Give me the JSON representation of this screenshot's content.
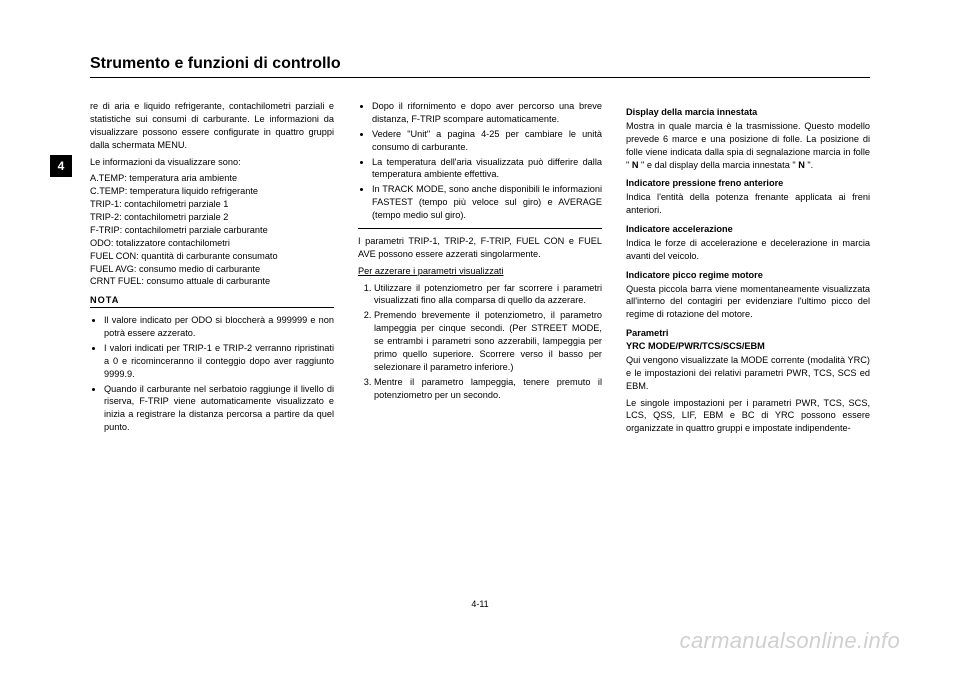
{
  "header": {
    "title": "Strumento e funzioni di controllo"
  },
  "sidetab": {
    "label": "4"
  },
  "page_number": "4-11",
  "watermark": "carmanualsonline.info",
  "col1": {
    "p1": "re di aria e liquido refrigerante, contachilometri parziali e statistiche sui consumi di carburante. Le informazioni da visualizzare possono essere configurate in quattro gruppi dalla schermata MENU.",
    "p2": "Le informazioni da visualizzare sono:",
    "l1": "A.TEMP: temperatura aria ambiente",
    "l2": "C.TEMP: temperatura liquido refrigerante",
    "l3": "TRIP-1: contachilometri parziale 1",
    "l4": "TRIP-2: contachilometri parziale 2",
    "l5": "F-TRIP: contachilometri parziale carburante",
    "l6": "ODO: totalizzatore contachilometri",
    "l7": "FUEL CON: quantità di carburante consumato",
    "l8": "FUEL AVG: consumo medio di carburante",
    "l9": "CRNT FUEL: consumo attuale di carburante",
    "nota_label": "NOTA",
    "b1": "Il valore indicato per ODO si bloccherà a 999999 e non potrà essere azzerato.",
    "b2": "I valori indicati per TRIP-1 e TRIP-2 verranno ripristinati a 0 e ricominceranno il conteggio dopo aver raggiunto 9999.9.",
    "b3": "Quando il carburante nel serbatoio raggiunge il livello di riserva, F-TRIP viene automaticamente visualizzato e inizia a registrare la distanza percorsa a partire da quel punto."
  },
  "col2": {
    "b1": "Dopo il rifornimento e dopo aver percorso una breve distanza, F-TRIP scompare automaticamente.",
    "b2": "Vedere \"Unit\" a pagina 4-25 per cambiare le unità consumo di carburante.",
    "b3": "La temperatura dell'aria visualizzata può differire dalla temperatura ambiente effettiva.",
    "b4": "In TRACK MODE, sono anche disponibili le informazioni FASTEST (tempo più veloce sul giro) e AVERAGE (tempo medio sul giro).",
    "p1": "I parametri TRIP-1, TRIP-2, F-TRIP, FUEL CON e FUEL AVE possono essere azzerati singolarmente.",
    "reset_title": "Per azzerare i parametri visualizzati",
    "s1": "Utilizzare il potenziometro per far scorrere i parametri visualizzati fino alla comparsa di quello da azzerare.",
    "s2": "Premendo brevemente il potenziometro, il parametro lampeggia per cinque secondi. (Per STREET MODE, se entrambi i parametri sono azzerabili, lampeggia per primo quello superiore. Scorrere verso il basso per selezionare il parametro inferiore.)",
    "s3": "Mentre il parametro lampeggia, tenere premuto il potenziometro per un secondo."
  },
  "col3": {
    "h1": "Display della marcia innestata",
    "p1a": "Mostra in quale marcia è la trasmissione. Questo modello prevede 6 marce e una posizione di folle. La posizione di folle viene indicata dalla spia di segnalazione marcia in folle \" ",
    "n1": "N",
    "p1b": " \" e dal display della marcia innestata \" ",
    "n2": "N",
    "p1c": " \".",
    "h2": "Indicatore pressione freno anteriore",
    "p2": "Indica l'entità della potenza frenante applicata ai freni anteriori.",
    "h3": "Indicatore accelerazione",
    "p3": "Indica le forze di accelerazione e decelerazione in marcia avanti del veicolo.",
    "h4": "Indicatore picco regime motore",
    "p4": "Questa piccola barra viene momentaneamente visualizzata all'interno del contagiri per evidenziare l'ultimo picco del regime di rotazione del motore.",
    "h5": "Parametri",
    "h5b": "YRC MODE/PWR/TCS/SCS/EBM",
    "p5": "Qui vengono visualizzate la MODE corrente (modalità YRC) e le impostazioni dei relativi parametri PWR, TCS, SCS ed EBM.",
    "p6": "Le singole impostazioni per i parametri PWR, TCS, SCS, LCS, QSS, LIF, EBM e BC di YRC possono essere organizzate in quattro gruppi e impostate indipendente-"
  }
}
